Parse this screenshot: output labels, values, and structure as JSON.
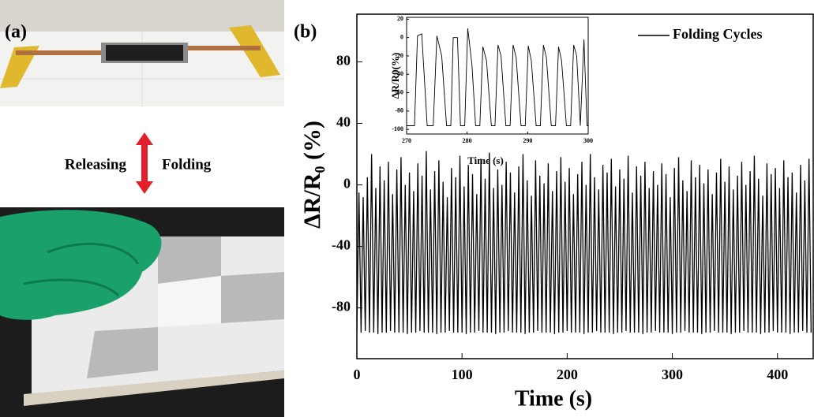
{
  "panel_a": {
    "label": "(a)",
    "left_text": "Releasing",
    "right_text": "Folding"
  },
  "chart_data": [
    {
      "type": "line",
      "panel_label": "(b)",
      "xlabel": "Time (s)",
      "ylabel": "ΔR/R₀ (%)",
      "x": [
        0,
        2,
        4,
        6,
        8,
        10,
        12,
        14,
        16,
        18,
        20,
        22,
        24,
        26,
        28,
        30,
        32,
        34,
        36,
        38,
        40,
        42,
        44,
        46,
        48,
        50,
        52,
        54,
        56,
        58,
        60,
        62,
        64,
        66,
        68,
        70,
        72,
        74,
        76,
        78,
        80,
        82,
        84,
        86,
        88,
        90,
        92,
        94,
        96,
        98,
        100,
        102,
        104,
        106,
        108,
        110,
        112,
        114,
        116,
        118,
        120,
        122,
        124,
        126,
        128,
        130,
        132,
        134,
        136,
        138,
        140,
        142,
        144,
        146,
        148,
        150,
        152,
        154,
        156,
        158,
        160,
        162,
        164,
        166,
        168,
        170,
        172,
        174,
        176,
        178,
        180,
        182,
        184,
        186,
        188,
        190,
        192,
        194,
        196,
        198,
        200,
        202,
        204,
        206,
        208,
        210,
        212,
        214,
        216,
        218,
        220,
        222,
        224,
        226,
        228,
        230,
        232,
        234,
        236,
        238,
        240,
        242,
        244,
        246,
        248,
        250,
        252,
        254,
        256,
        258,
        260,
        262,
        264,
        266,
        268,
        270,
        272,
        274,
        276,
        278,
        280,
        282,
        284,
        286,
        288,
        290,
        292,
        294,
        296,
        298,
        300,
        302,
        304,
        306,
        308,
        310,
        312,
        314,
        316,
        318,
        320,
        322,
        324,
        326,
        328,
        330,
        332,
        334,
        336,
        338,
        340,
        342,
        344,
        346,
        348,
        350,
        352,
        354,
        356,
        358,
        360,
        362,
        364,
        366,
        368,
        370,
        372,
        374,
        376,
        378,
        380,
        382,
        384,
        386,
        388,
        390,
        392,
        394,
        396,
        398,
        400,
        402,
        404,
        406,
        408,
        410,
        412,
        414,
        416,
        418,
        420,
        422,
        424,
        426,
        428,
        430,
        432
      ],
      "series": [
        {
          "name": "Folding Cycles",
          "color": "#000000",
          "values": [
            -96,
            -5,
            -96,
            -8,
            -95,
            5,
            -96,
            20,
            -96,
            -2,
            -97,
            12,
            -96,
            3,
            -96,
            15,
            -95,
            -6,
            -96,
            10,
            -96,
            18,
            -96,
            0,
            -97,
            8,
            -96,
            -4,
            -96,
            14,
            -95,
            6,
            -96,
            22,
            -96,
            -3,
            -96,
            9,
            -97,
            16,
            -96,
            2,
            -96,
            -8,
            -95,
            11,
            -96,
            5,
            -96,
            19,
            -96,
            -1,
            -97,
            13,
            -96,
            7,
            -96,
            -6,
            -95,
            17,
            -96,
            4,
            -96,
            21,
            -96,
            -2,
            -97,
            10,
            -96,
            0,
            -96,
            15,
            -95,
            8,
            -96,
            -5,
            -96,
            12,
            -96,
            20,
            -97,
            3,
            -96,
            -7,
            -96,
            16,
            -95,
            6,
            -96,
            1,
            -96,
            14,
            -96,
            -4,
            -97,
            9,
            -96,
            18,
            -96,
            2,
            -95,
            11,
            -96,
            -6,
            -96,
            7,
            -96,
            15,
            -97,
            0,
            -96,
            20,
            -96,
            5,
            -95,
            -3,
            -96,
            13,
            -96,
            8,
            -96,
            17,
            -97,
            -1,
            -96,
            10,
            -96,
            4,
            -95,
            19,
            -96,
            -5,
            -96,
            12,
            -96,
            6,
            -97,
            15,
            -96,
            -2,
            -96,
            9,
            -95,
            0,
            -96,
            14,
            -96,
            7,
            -96,
            -8,
            -97,
            11,
            -96,
            18,
            -96,
            3,
            -95,
            -4,
            -96,
            16,
            -96,
            5,
            -96,
            13,
            -97,
            1,
            -96,
            10,
            -96,
            -6,
            -95,
            8,
            -96,
            17,
            -96,
            2,
            -96,
            12,
            -97,
            -3,
            -96,
            6,
            -96,
            15,
            -95,
            0,
            -96,
            9,
            -96,
            19,
            -96,
            4,
            -97,
            -7,
            -96,
            14,
            -96,
            7,
            -95,
            11,
            -96,
            -2,
            -96,
            16,
            -96,
            5,
            -97,
            8,
            -96,
            -5,
            -96,
            13,
            -95,
            3,
            -96,
            17,
            -96
          ]
        }
      ],
      "xlim": [
        0,
        434
      ],
      "ylim": [
        -113,
        111
      ],
      "xticks": [
        0,
        100,
        200,
        300,
        400
      ],
      "yticks": [
        -80,
        -40,
        0,
        40,
        80
      ],
      "legend": "upper right"
    },
    {
      "type": "line",
      "xlabel": "Time (s)",
      "ylabel": "ΔR/R0(%)",
      "x": [
        270,
        271.3,
        271.8,
        272.5,
        273.4,
        274.4,
        275,
        275.8,
        276.6,
        277.3,
        277.7,
        278.4,
        278.9,
        279.6,
        280.1,
        280.8,
        281.4,
        282.1,
        282.6,
        283.2,
        284,
        284.6,
        285.1,
        285.6,
        286.4,
        287.1,
        287.6,
        288.1,
        288.9,
        289.6,
        290.1,
        290.6,
        291.4,
        292.1,
        292.6,
        293.1,
        293.9,
        294.6,
        295.1,
        295.6,
        296.4,
        297.1,
        297.6,
        298.1,
        298.7,
        299.3,
        299.8,
        300
      ],
      "series": [
        {
          "color": "#000000",
          "values": [
            -96,
            -96,
            2,
            4,
            -96,
            -96,
            2,
            -20,
            -96,
            -96,
            0,
            0,
            -96,
            -96,
            10,
            -30,
            -96,
            -96,
            -10,
            -25,
            -96,
            -96,
            -8,
            -20,
            -96,
            -96,
            -8,
            -22,
            -96,
            -96,
            -9,
            -25,
            -96,
            -96,
            -8,
            -22,
            -96,
            -96,
            -10,
            -25,
            -96,
            -96,
            -8,
            -20,
            -96,
            -2,
            -96,
            -96
          ]
        }
      ],
      "xlim": [
        270,
        300
      ],
      "ylim": [
        -105,
        22
      ],
      "xticks": [
        270,
        280,
        290,
        300
      ],
      "yticks": [
        -100,
        -80,
        -60,
        -40,
        -20,
        0,
        20
      ]
    }
  ]
}
